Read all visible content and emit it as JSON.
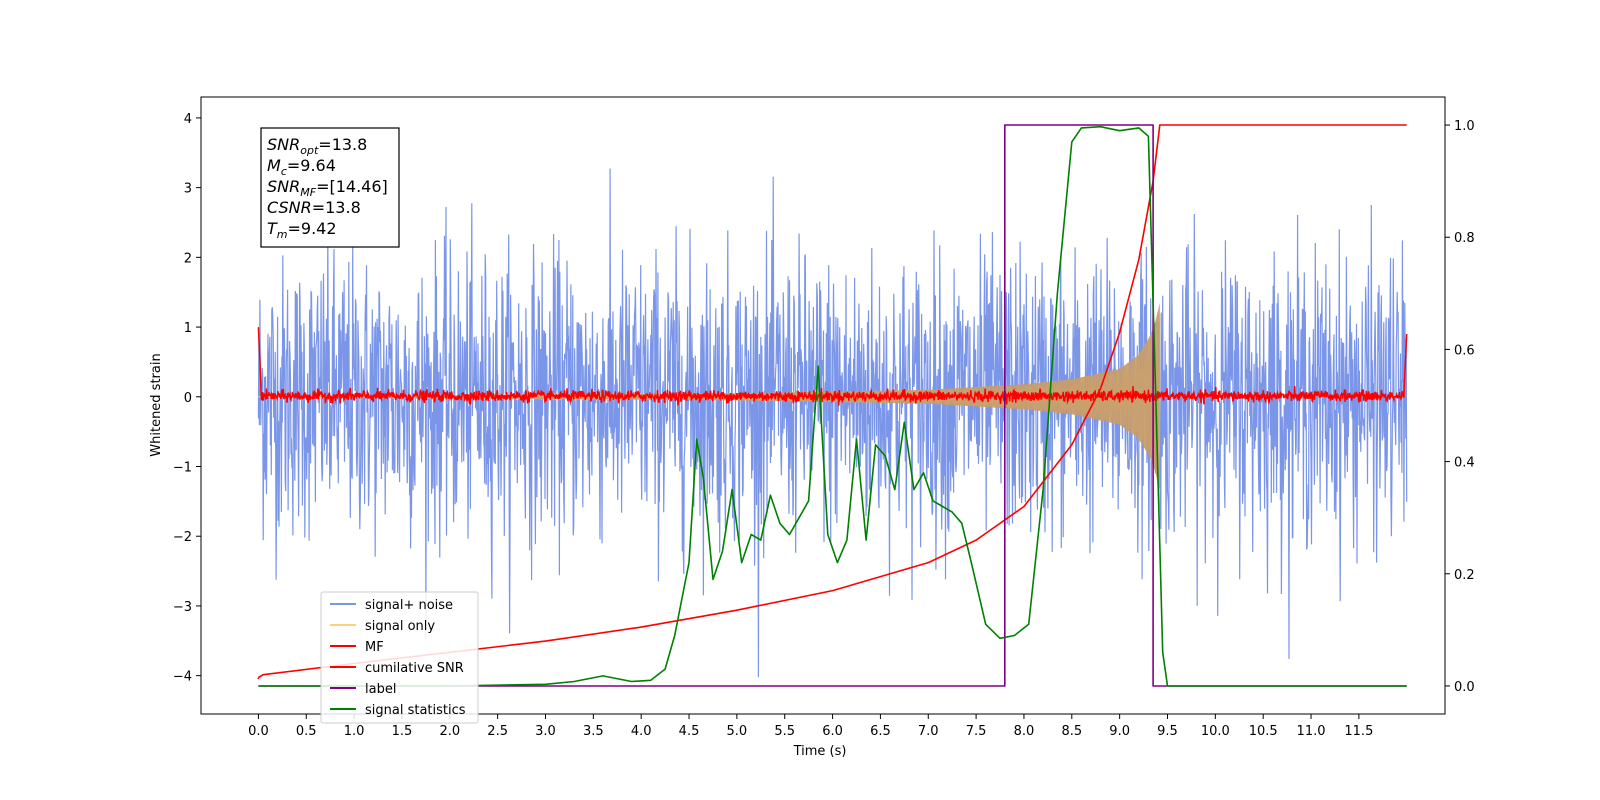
{
  "chart_data": {
    "type": "line",
    "xlabel": "Time (s)",
    "ylabel": "Whitened strain",
    "xlim": [
      -0.6,
      12.4
    ],
    "ylim": [
      -4.55,
      4.3
    ],
    "y2lim": [
      -0.05,
      1.05
    ],
    "x_ticks": [
      "0.0",
      "0.5",
      "1.0",
      "1.5",
      "2.0",
      "2.5",
      "3.0",
      "3.5",
      "4.0",
      "4.5",
      "5.0",
      "5.5",
      "6.0",
      "6.5",
      "7.0",
      "7.5",
      "8.0",
      "8.5",
      "9.0",
      "9.5",
      "10.0",
      "10.5",
      "11.0",
      "11.5"
    ],
    "y_ticks": [
      "−4",
      "−3",
      "−2",
      "−1",
      "0",
      "1",
      "2",
      "3",
      "4"
    ],
    "y2_ticks": [
      "0.0",
      "0.2",
      "0.4",
      "0.6",
      "0.8",
      "1.0"
    ],
    "legend": {
      "placement": "lower-left",
      "entries": [
        {
          "label": "signal+ noise",
          "color": "#7b96e8"
        },
        {
          "label": "signal only",
          "color": "#fdd080"
        },
        {
          "label": "MF",
          "color": "#ff0000"
        },
        {
          "label": "cumilative SNR",
          "color": "#ff0000"
        },
        {
          "label": "label",
          "color": "#800080"
        },
        {
          "label": "signal statistics",
          "color": "#008000"
        }
      ]
    },
    "annotation": {
      "lines": [
        {
          "base": "SNR",
          "sub": "opt",
          "rest": "=13.8"
        },
        {
          "base": "M",
          "sub": "c",
          "rest": "=9.64"
        },
        {
          "base": "SNR",
          "sub": "MF",
          "rest": "=[14.46]"
        },
        {
          "base": "CSNR",
          "sub": "",
          "rest": "=13.8"
        },
        {
          "base": "T",
          "sub": "m",
          "rest": "=9.42"
        }
      ]
    },
    "series": [
      {
        "name": "signal+ noise",
        "axis": "left",
        "color": "#7b96e8",
        "description_stats": {
          "t_start": 0.0,
          "t_end": 12.0,
          "mean": 0.0,
          "std": 1.0,
          "max": 4.0,
          "min": -4.15
        }
      },
      {
        "name": "signal only",
        "axis": "left",
        "color": "#fdd080",
        "envelope": {
          "t": [
            0.0,
            5.0,
            7.0,
            8.0,
            8.5,
            9.0,
            9.2,
            9.35,
            9.42
          ],
          "amp": [
            0.0,
            0.05,
            0.1,
            0.18,
            0.25,
            0.4,
            0.6,
            0.95,
            1.35
          ]
        }
      },
      {
        "name": "MF",
        "axis": "left",
        "color": "#ff0000",
        "values_summary": {
          "start": 1.0,
          "typical_range": [
            -0.1,
            0.12
          ],
          "end": 0.9
        }
      },
      {
        "name": "cumilative SNR",
        "axis": "right",
        "color": "#ff0000",
        "x": [
          0.0,
          0.05,
          1.0,
          2.0,
          3.0,
          4.0,
          5.0,
          6.0,
          7.0,
          7.5,
          8.0,
          8.5,
          8.8,
          9.0,
          9.2,
          9.35,
          9.42,
          9.5,
          12.0
        ],
        "y": [
          0.015,
          0.02,
          0.04,
          0.06,
          0.08,
          0.105,
          0.135,
          0.17,
          0.22,
          0.26,
          0.32,
          0.43,
          0.53,
          0.63,
          0.76,
          0.9,
          1.0,
          1.0,
          1.0
        ]
      },
      {
        "name": "label",
        "axis": "right",
        "color": "#800080",
        "x": [
          0.0,
          7.8,
          7.8,
          9.35,
          9.35,
          12.0
        ],
        "y": [
          0.0,
          0.0,
          1.0,
          1.0,
          0.0,
          0.0
        ]
      },
      {
        "name": "signal statistics",
        "axis": "right",
        "color": "#008000",
        "x": [
          0.0,
          1.0,
          2.0,
          3.0,
          3.3,
          3.6,
          3.9,
          4.1,
          4.25,
          4.35,
          4.5,
          4.58,
          4.65,
          4.75,
          4.85,
          4.95,
          5.05,
          5.15,
          5.25,
          5.35,
          5.45,
          5.55,
          5.65,
          5.75,
          5.85,
          5.95,
          6.05,
          6.15,
          6.25,
          6.35,
          6.45,
          6.55,
          6.65,
          6.75,
          6.85,
          6.95,
          7.05,
          7.15,
          7.25,
          7.35,
          7.45,
          7.6,
          7.75,
          7.9,
          8.05,
          8.2,
          8.35,
          8.5,
          8.6,
          8.8,
          9.0,
          9.2,
          9.3,
          9.38,
          9.45,
          9.5,
          12.0
        ],
        "y": [
          0.0,
          0.0,
          0.0,
          0.003,
          0.008,
          0.018,
          0.008,
          0.01,
          0.03,
          0.09,
          0.22,
          0.44,
          0.37,
          0.19,
          0.24,
          0.35,
          0.22,
          0.27,
          0.26,
          0.34,
          0.29,
          0.27,
          0.3,
          0.33,
          0.57,
          0.27,
          0.22,
          0.26,
          0.44,
          0.26,
          0.43,
          0.41,
          0.35,
          0.47,
          0.35,
          0.38,
          0.33,
          0.32,
          0.31,
          0.29,
          0.22,
          0.11,
          0.085,
          0.09,
          0.11,
          0.35,
          0.7,
          0.97,
          0.995,
          0.997,
          0.99,
          0.995,
          0.98,
          0.5,
          0.06,
          0.0,
          0.0
        ]
      }
    ]
  }
}
